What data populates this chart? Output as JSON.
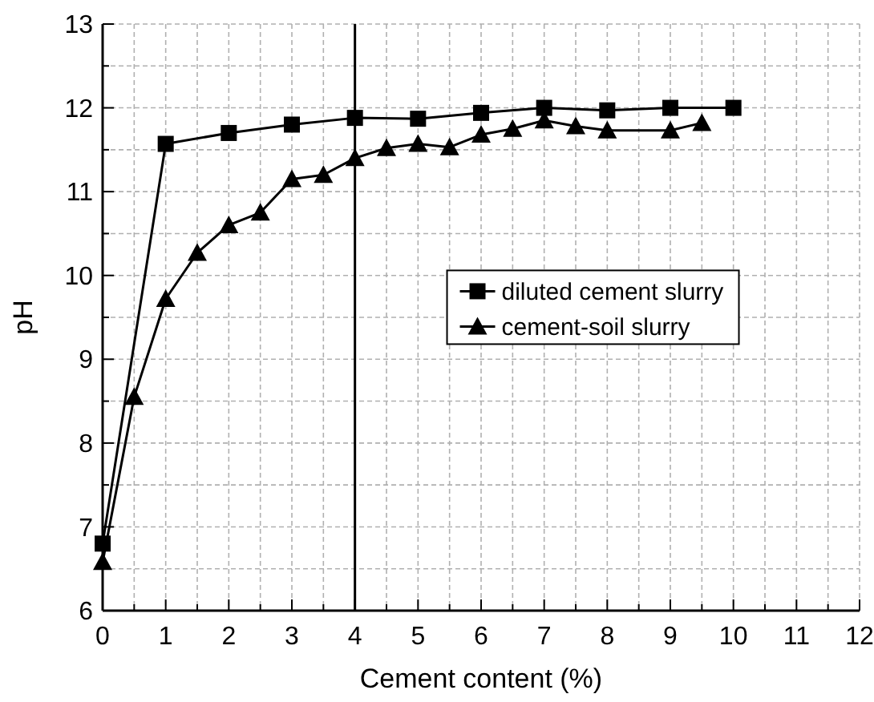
{
  "chart_data": {
    "type": "line",
    "xlabel": "Cement content (%)",
    "ylabel": "pH",
    "xlim": [
      0,
      12
    ],
    "ylim": [
      6,
      13
    ],
    "xticks": [
      0,
      {
        "value": 0.5,
        "label": null
      },
      1,
      {
        "value": 1.5,
        "label": null
      },
      2,
      {
        "value": 2.5,
        "label": null
      },
      3,
      {
        "value": 3.5,
        "label": null
      },
      4,
      {
        "value": 4.5,
        "label": null
      },
      5,
      {
        "value": 5.5,
        "label": null
      },
      6,
      {
        "value": 6.5,
        "label": null
      },
      7,
      {
        "value": 7.5,
        "label": null
      },
      8,
      {
        "value": 8.5,
        "label": null
      },
      9,
      {
        "value": 9.5,
        "label": null
      },
      10,
      {
        "value": 10.5,
        "label": null
      },
      11,
      {
        "value": 11.5,
        "label": null
      },
      12
    ],
    "yticks": [
      6,
      {
        "value": 6.5,
        "label": null
      },
      7,
      {
        "value": 7.5,
        "label": null
      },
      8,
      {
        "value": 8.5,
        "label": null
      },
      9,
      {
        "value": 9.5,
        "label": null
      },
      10,
      {
        "value": 10.5,
        "label": null
      },
      11,
      {
        "value": 11.5,
        "label": null
      },
      12,
      {
        "value": 12.5,
        "label": null
      },
      13
    ],
    "grid": true,
    "legend": "right",
    "line_style": "solid",
    "ref_lines": [
      {
        "axis": "x",
        "value": 4,
        "color": "#000000"
      }
    ],
    "series": [
      {
        "name": "diluted cement slurry",
        "color": "#000000",
        "marker": "square",
        "x": [
          0,
          1,
          2,
          3,
          4,
          5,
          6,
          7,
          8,
          9,
          10
        ],
        "values": [
          6.8,
          11.57,
          11.7,
          11.8,
          11.88,
          11.87,
          11.94,
          12.0,
          11.97,
          12.0,
          12.0
        ]
      },
      {
        "name": "cement-soil slurry",
        "color": "#000000",
        "marker": "triangle",
        "x": [
          0,
          0.5,
          1,
          1.5,
          2,
          2.5,
          3,
          3.5,
          4,
          4.5,
          5,
          5.5,
          6,
          6.5,
          7,
          7.5,
          8,
          9,
          9.5
        ],
        "values": [
          6.58,
          8.55,
          9.72,
          10.27,
          10.6,
          10.75,
          11.15,
          11.2,
          11.4,
          11.52,
          11.57,
          11.53,
          11.68,
          11.75,
          11.85,
          11.78,
          11.73,
          11.73,
          11.82
        ]
      }
    ]
  }
}
